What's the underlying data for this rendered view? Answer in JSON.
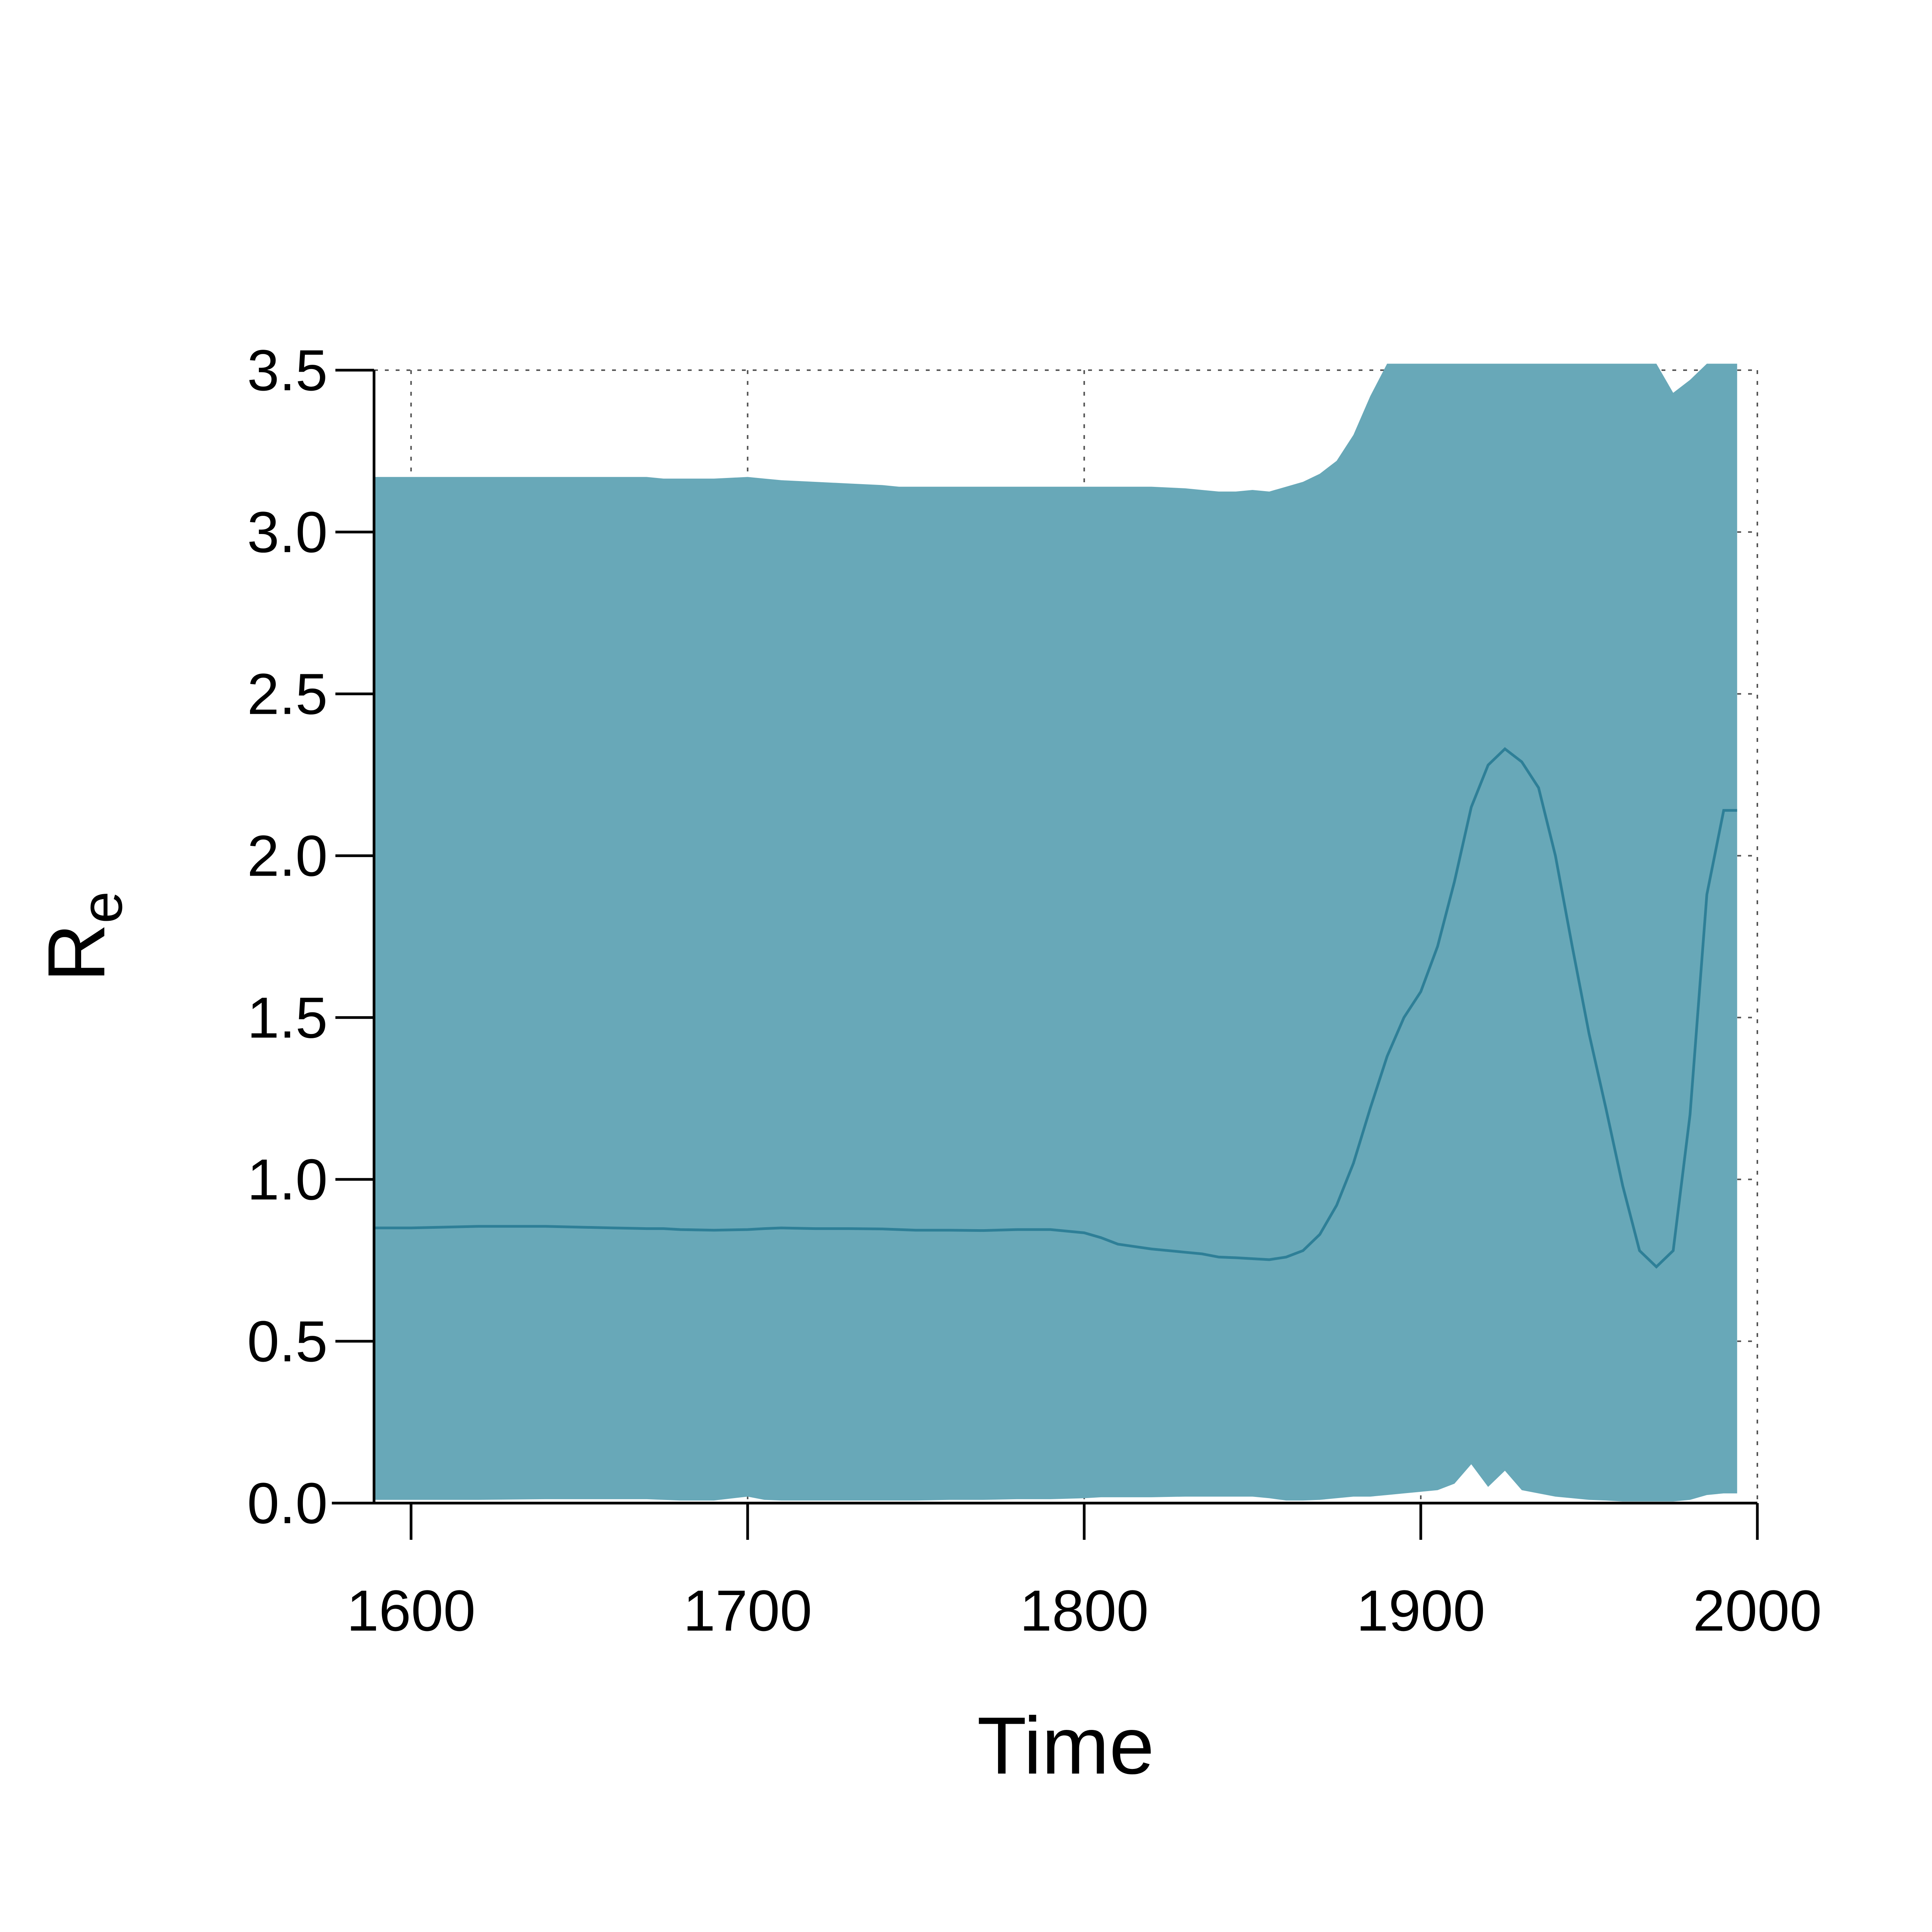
{
  "chart_data": {
    "type": "area",
    "xlabel": "Time",
    "ylabel": {
      "main": "R",
      "subscript": "e"
    },
    "xlim": [
      1589,
      2000
    ],
    "ylim": [
      0,
      3.5
    ],
    "xticks": [
      1600,
      1700,
      1800,
      1900,
      2000
    ],
    "xtick_labels": [
      "1600",
      "1700",
      "1800",
      "1900",
      "2000"
    ],
    "yticks": [
      0,
      0.5,
      1,
      1.5,
      2,
      2.5,
      3,
      3.5
    ],
    "ytick_labels": [
      "0.0",
      "0.5",
      "1.0",
      "1.5",
      "2.0",
      "2.5",
      "3.0",
      "3.5"
    ],
    "grid": true,
    "colors": {
      "band": "#68a8b8",
      "line": "#2e7f97"
    },
    "x": [
      1589,
      1600,
      1620,
      1640,
      1660,
      1670,
      1675,
      1680,
      1690,
      1700,
      1705,
      1710,
      1720,
      1730,
      1740,
      1745,
      1750,
      1760,
      1770,
      1780,
      1790,
      1800,
      1805,
      1810,
      1820,
      1830,
      1835,
      1840,
      1845,
      1850,
      1855,
      1860,
      1865,
      1870,
      1875,
      1880,
      1885,
      1890,
      1895,
      1900,
      1905,
      1910,
      1915,
      1920,
      1925,
      1930,
      1935,
      1940,
      1945,
      1950,
      1955,
      1960,
      1965,
      1970,
      1975,
      1980,
      1985,
      1990,
      1994
    ],
    "series": [
      {
        "kind": "median",
        "values": [
          0.85,
          0.85,
          0.855,
          0.855,
          0.85,
          0.848,
          0.848,
          0.845,
          0.843,
          0.845,
          0.848,
          0.85,
          0.848,
          0.848,
          0.847,
          0.845,
          0.843,
          0.843,
          0.842,
          0.845,
          0.845,
          0.835,
          0.82,
          0.8,
          0.785,
          0.775,
          0.77,
          0.76,
          0.758,
          0.755,
          0.752,
          0.76,
          0.78,
          0.83,
          0.92,
          1.05,
          1.22,
          1.38,
          1.5,
          1.58,
          1.72,
          1.92,
          2.15,
          2.28,
          2.33,
          2.29,
          2.21,
          2.0,
          1.72,
          1.45,
          1.22,
          0.98,
          0.78,
          0.73,
          0.78,
          1.2,
          1.88,
          2.14,
          2.14
        ]
      },
      {
        "kind": "upper",
        "values": [
          3.17,
          3.17,
          3.17,
          3.17,
          3.17,
          3.17,
          3.165,
          3.165,
          3.165,
          3.17,
          3.165,
          3.16,
          3.155,
          3.15,
          3.145,
          3.14,
          3.14,
          3.14,
          3.14,
          3.14,
          3.14,
          3.14,
          3.14,
          3.14,
          3.14,
          3.135,
          3.13,
          3.125,
          3.125,
          3.13,
          3.125,
          3.14,
          3.155,
          3.18,
          3.22,
          3.3,
          3.42,
          3.52,
          3.52,
          3.52,
          3.52,
          3.52,
          3.52,
          3.52,
          3.52,
          3.52,
          3.52,
          3.52,
          3.52,
          3.52,
          3.52,
          3.52,
          3.52,
          3.52,
          3.43,
          3.47,
          3.52,
          3.52,
          3.52
        ]
      },
      {
        "kind": "lower",
        "values": [
          0.01,
          0.01,
          0.01,
          0.012,
          0.012,
          0.012,
          0.01,
          0.008,
          0.008,
          0.02,
          0.01,
          0.008,
          0.008,
          0.008,
          0.008,
          0.008,
          0.008,
          0.01,
          0.01,
          0.012,
          0.012,
          0.015,
          0.018,
          0.018,
          0.018,
          0.02,
          0.02,
          0.02,
          0.02,
          0.02,
          0.015,
          0.008,
          0.008,
          0.01,
          0.015,
          0.02,
          0.02,
          0.025,
          0.03,
          0.035,
          0.04,
          0.06,
          0.12,
          0.05,
          0.1,
          0.04,
          0.03,
          0.02,
          0.015,
          0.01,
          0.008,
          0.005,
          0.005,
          0.005,
          0.005,
          0.01,
          0.025,
          0.03,
          0.03
        ]
      }
    ]
  }
}
